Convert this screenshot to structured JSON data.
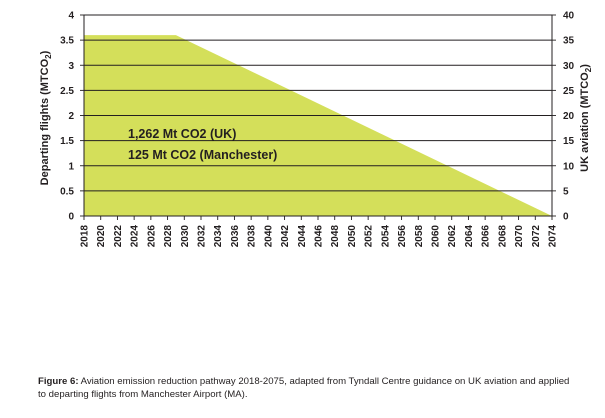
{
  "chart_data": {
    "type": "area",
    "title": "",
    "x": [
      2018,
      2029,
      2074
    ],
    "series": [
      {
        "values": [
          3.6,
          3.6,
          0
        ]
      }
    ],
    "x_ticks": [
      "2018",
      "2020",
      "2022",
      "2024",
      "2026",
      "2028",
      "2030",
      "2032",
      "2034",
      "2036",
      "2038",
      "2040",
      "2042",
      "2044",
      "2046",
      "2048",
      "2050",
      "2052",
      "2054",
      "2056",
      "2058",
      "2060",
      "2062",
      "2064",
      "2066",
      "2068",
      "2070",
      "2072",
      "2074"
    ],
    "y_left": {
      "label_main": "Departing flights (MTCO",
      "label_sub": "2",
      "label_end": ")",
      "ylim": [
        0,
        4
      ],
      "ticks": [
        "0",
        "0.5",
        "1",
        "1.5",
        "2",
        "2.5",
        "3",
        "3.5",
        "4"
      ]
    },
    "y_right": {
      "label_main": "UK aviation (MTCO",
      "label_sub": "2",
      "label_end": ")",
      "ylim": [
        0,
        40
      ],
      "ticks": [
        "0",
        "5",
        "10",
        "15",
        "20",
        "25",
        "30",
        "35",
        "40"
      ]
    },
    "grid": "horizontal",
    "fill_color": "#d4df5a",
    "annotations": [
      "1,262 Mt CO2 (UK)",
      "125 Mt CO2 (Manchester)"
    ]
  },
  "caption": {
    "label": "Figure 6:",
    "text": " Aviation emission reduction pathway 2018-2075, adapted from Tyndall Centre guidance on UK aviation and applied to departing flights from Manchester Airport (MA)."
  }
}
